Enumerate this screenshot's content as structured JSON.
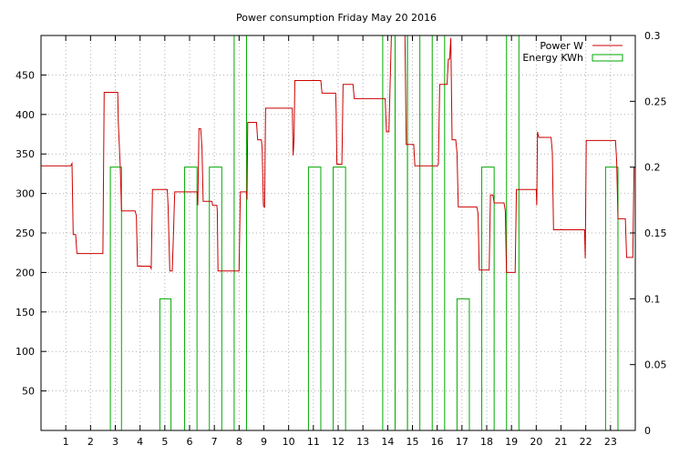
{
  "chart_data": {
    "type": "line",
    "title": "Power consumption Friday May 20 2016",
    "xlabel": "",
    "ylabel": "",
    "y2label": "",
    "xlim": [
      0,
      24
    ],
    "ylim": [
      0,
      500
    ],
    "y2lim": [
      0,
      0.3
    ],
    "xticks": [
      1,
      2,
      3,
      4,
      5,
      6,
      7,
      8,
      9,
      10,
      11,
      12,
      13,
      14,
      15,
      16,
      17,
      18,
      19,
      20,
      21,
      22,
      23
    ],
    "yticks": [
      50,
      100,
      150,
      200,
      250,
      300,
      350,
      400,
      450
    ],
    "y2ticks": [
      0,
      0.05,
      0.1,
      0.15,
      0.2,
      0.25,
      0.3
    ],
    "y2tick_labels": [
      "0",
      "0.05",
      "0.1",
      "0.15",
      "0.2",
      "0.25",
      "0.3"
    ],
    "grid": true,
    "legend_position": "top-right",
    "series": [
      {
        "name": "Power W",
        "kind": "line",
        "axis": "left",
        "color": "#cc0000",
        "points": [
          [
            0,
            335
          ],
          [
            1.2,
            335
          ],
          [
            1.25,
            338
          ],
          [
            1.3,
            248
          ],
          [
            1.4,
            248
          ],
          [
            1.45,
            224
          ],
          [
            2.5,
            224
          ],
          [
            2.55,
            428
          ],
          [
            3.1,
            428
          ],
          [
            3.12,
            390
          ],
          [
            3.2,
            335
          ],
          [
            3.25,
            278
          ],
          [
            3.8,
            278
          ],
          [
            3.85,
            272
          ],
          [
            3.9,
            208
          ],
          [
            4.4,
            208
          ],
          [
            4.45,
            205
          ],
          [
            4.5,
            305
          ],
          [
            5.1,
            305
          ],
          [
            5.13,
            285
          ],
          [
            5.2,
            202
          ],
          [
            5.3,
            202
          ],
          [
            5.35,
            248
          ],
          [
            5.4,
            302
          ],
          [
            6.3,
            302
          ],
          [
            6.33,
            285
          ],
          [
            6.38,
            382
          ],
          [
            6.45,
            382
          ],
          [
            6.5,
            358
          ],
          [
            6.55,
            290
          ],
          [
            6.9,
            290
          ],
          [
            6.93,
            285
          ],
          [
            7.1,
            285
          ],
          [
            7.12,
            278
          ],
          [
            7.15,
            202
          ],
          [
            8.0,
            202
          ],
          [
            8.05,
            302
          ],
          [
            8.3,
            302
          ],
          [
            8.32,
            292
          ],
          [
            8.35,
            390
          ],
          [
            8.7,
            390
          ],
          [
            8.75,
            368
          ],
          [
            8.9,
            368
          ],
          [
            8.93,
            358
          ],
          [
            8.98,
            285
          ],
          [
            9.03,
            282
          ],
          [
            9.07,
            408
          ],
          [
            10.15,
            408
          ],
          [
            10.18,
            348
          ],
          [
            10.22,
            368
          ],
          [
            10.25,
            443
          ],
          [
            11.3,
            443
          ],
          [
            11.35,
            427
          ],
          [
            11.9,
            427
          ],
          [
            11.92,
            405
          ],
          [
            11.95,
            337
          ],
          [
            12.15,
            337
          ],
          [
            12.2,
            438
          ],
          [
            12.6,
            438
          ],
          [
            12.65,
            420
          ],
          [
            13.9,
            420
          ],
          [
            13.95,
            378
          ],
          [
            14.05,
            378
          ],
          [
            14.08,
            415
          ],
          [
            14.15,
            500
          ],
          [
            14.7,
            500
          ],
          [
            14.75,
            362
          ],
          [
            15.05,
            362
          ],
          [
            15.1,
            335
          ],
          [
            16.0,
            335
          ],
          [
            16.05,
            337
          ],
          [
            16.1,
            438
          ],
          [
            16.4,
            438
          ],
          [
            16.45,
            470
          ],
          [
            16.5,
            470
          ],
          [
            16.55,
            497
          ],
          [
            16.6,
            368
          ],
          [
            16.75,
            368
          ],
          [
            16.8,
            352
          ],
          [
            16.85,
            283
          ],
          [
            17.6,
            283
          ],
          [
            17.65,
            275
          ],
          [
            17.7,
            203
          ],
          [
            18.1,
            203
          ],
          [
            18.15,
            298
          ],
          [
            18.25,
            298
          ],
          [
            18.3,
            288
          ],
          [
            18.7,
            288
          ],
          [
            18.75,
            278
          ],
          [
            18.8,
            200
          ],
          [
            19.15,
            200
          ],
          [
            19.2,
            305
          ],
          [
            20.0,
            305
          ],
          [
            20.02,
            285
          ],
          [
            20.05,
            378
          ],
          [
            20.1,
            371
          ],
          [
            20.6,
            371
          ],
          [
            20.65,
            352
          ],
          [
            20.7,
            254
          ],
          [
            21.95,
            254
          ],
          [
            21.98,
            218
          ],
          [
            22.02,
            367
          ],
          [
            23.2,
            367
          ],
          [
            23.25,
            340
          ],
          [
            23.3,
            268
          ],
          [
            23.6,
            268
          ],
          [
            23.65,
            219
          ],
          [
            23.9,
            219
          ],
          [
            23.95,
            333
          ],
          [
            24,
            333
          ]
        ]
      },
      {
        "name": "Energy KWh",
        "kind": "step",
        "axis": "right",
        "color": "#00aa00",
        "bars": [
          [
            2.8,
            3.25,
            0.2
          ],
          [
            4.8,
            5.25,
            0.1
          ],
          [
            5.8,
            6.3,
            0.2
          ],
          [
            6.8,
            7.3,
            0.2
          ],
          [
            7.8,
            8.3,
            0.3
          ],
          [
            10.8,
            11.3,
            0.2
          ],
          [
            11.8,
            12.3,
            0.2
          ],
          [
            13.8,
            14.3,
            0.3
          ],
          [
            14.3,
            14.8,
            0.3
          ],
          [
            14.8,
            15.3,
            0.3
          ],
          [
            15.8,
            16.3,
            0.3
          ],
          [
            16.8,
            17.3,
            0.1
          ],
          [
            17.8,
            18.3,
            0.2
          ],
          [
            18.8,
            19.3,
            0.3
          ],
          [
            22.8,
            23.3,
            0.2
          ]
        ]
      }
    ]
  }
}
